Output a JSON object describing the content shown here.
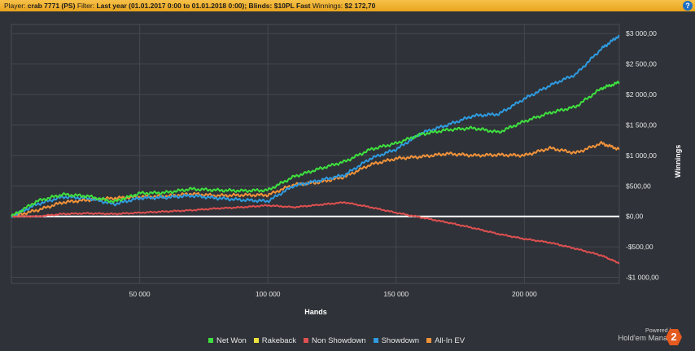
{
  "header": {
    "player_label": "Player:",
    "player_value": "crab 7771 (PS)",
    "filter_label": "Filter:",
    "filter_value": "Last year (01.01.2017 0:00 to 01.01.2018 0:00); Blinds: $10PL Fast",
    "winnings_label": "Winnings:",
    "winnings_value": "$2 172,70",
    "help_icon": "?"
  },
  "branding": {
    "powered_by": "Powered by",
    "product": "Hold'em Manager",
    "logo_text": "2"
  },
  "colors": {
    "background": "#2f3238",
    "net_won": "#3fe03f",
    "rakeback": "#f0e23c",
    "non_showdown": "#e05050",
    "showdown": "#2f9be0",
    "all_in_ev": "#f0923a",
    "zero_line": "#ffffff",
    "header_bar": "#f2b534"
  },
  "chart_data": {
    "type": "line",
    "xlabel": "Hands",
    "ylabel": "Winnings",
    "xlim": [
      0,
      237000
    ],
    "ylim": [
      -1100,
      3150
    ],
    "x_ticks": [
      50000,
      100000,
      150000,
      200000
    ],
    "x_tick_labels": [
      "50 000",
      "100 000",
      "150 000",
      "200 000"
    ],
    "y_ticks": [
      -1000,
      -500,
      0,
      500,
      1000,
      1500,
      2000,
      2500,
      3000
    ],
    "y_tick_labels": [
      "-$1 000,00",
      "-$500,00",
      "$0,00",
      "$500,00",
      "$1 000,00",
      "$1 500,00",
      "$2 000,00",
      "$2 500,00",
      "$3 000,00"
    ],
    "grid": true,
    "legend_position": "bottom",
    "x": [
      0,
      10000,
      20000,
      30000,
      40000,
      50000,
      60000,
      70000,
      80000,
      90000,
      100000,
      110000,
      120000,
      130000,
      140000,
      150000,
      160000,
      170000,
      180000,
      190000,
      200000,
      210000,
      220000,
      230000,
      237000
    ],
    "series": [
      {
        "name": "Net Won",
        "color": "#3fe03f",
        "values": [
          0,
          250,
          360,
          330,
          240,
          380,
          390,
          450,
          430,
          420,
          430,
          650,
          780,
          900,
          1100,
          1200,
          1350,
          1420,
          1450,
          1380,
          1560,
          1700,
          1800,
          2100,
          2200
        ]
      },
      {
        "name": "Rakeback",
        "color": "#f0e23c",
        "values": [
          0,
          0,
          0,
          0,
          0,
          0,
          0,
          0,
          0,
          0,
          0,
          0,
          0,
          0,
          0,
          0,
          0,
          0,
          0,
          0,
          0,
          0,
          0,
          0,
          0
        ]
      },
      {
        "name": "Non Showdown",
        "color": "#e05050",
        "values": [
          0,
          0,
          40,
          50,
          40,
          60,
          80,
          100,
          130,
          150,
          180,
          150,
          190,
          230,
          150,
          60,
          -20,
          -100,
          -190,
          -290,
          -370,
          -430,
          -530,
          -640,
          -770
        ]
      },
      {
        "name": "Showdown",
        "color": "#2f9be0",
        "values": [
          0,
          200,
          320,
          300,
          200,
          300,
          310,
          340,
          300,
          270,
          250,
          500,
          590,
          680,
          950,
          1100,
          1370,
          1500,
          1650,
          1680,
          1930,
          2150,
          2330,
          2750,
          2970
        ]
      },
      {
        "name": "All-In EV",
        "color": "#f0923a",
        "values": [
          0,
          100,
          230,
          270,
          300,
          320,
          330,
          370,
          340,
          350,
          350,
          520,
          560,
          650,
          850,
          950,
          980,
          1030,
          1000,
          1010,
          1000,
          1120,
          1040,
          1200,
          1100
        ]
      }
    ]
  }
}
